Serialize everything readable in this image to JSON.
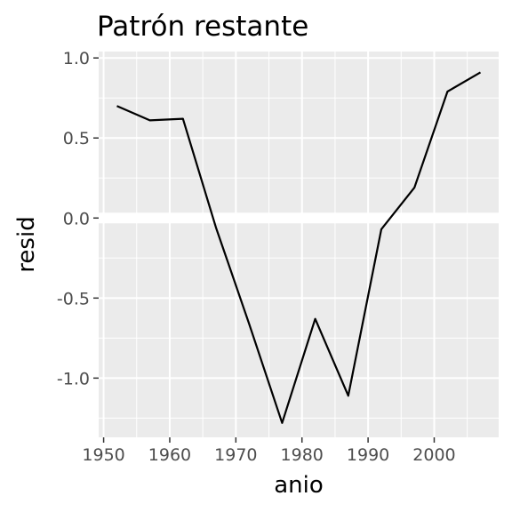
{
  "chart_data": {
    "type": "line",
    "title": "Patrón restante",
    "xlabel": "anio",
    "ylabel": "resid",
    "xlim": [
      1949.25,
      2009.75
    ],
    "ylim": [
      -1.37,
      1.04
    ],
    "x_ticks": [
      1950,
      1960,
      1970,
      1980,
      1990,
      2000
    ],
    "x_tick_labels": [
      "1950",
      "1960",
      "1970",
      "1980",
      "1990",
      "2000"
    ],
    "y_ticks": [
      1.0,
      0.5,
      0.0,
      -0.5,
      -1.0
    ],
    "y_tick_labels": [
      "1.0",
      "0.5",
      "0.0",
      "-0.5",
      "-1.0"
    ],
    "grid": true,
    "reference_line": 0,
    "series": [
      {
        "color": "#000000",
        "x": [
          1952,
          1957,
          1962,
          1967,
          1972,
          1977,
          1982,
          1987,
          1992,
          1997,
          2002,
          2007
        ],
        "y": [
          0.7,
          0.61,
          0.62,
          -0.06,
          -0.66,
          -1.28,
          -0.63,
          -1.11,
          -0.07,
          0.19,
          0.79,
          0.91
        ]
      }
    ]
  }
}
